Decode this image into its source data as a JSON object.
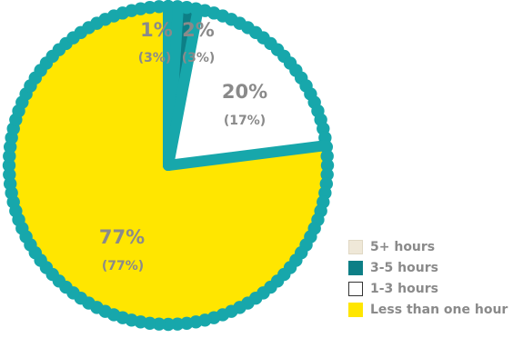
{
  "chart_data": {
    "type": "pie",
    "title": "",
    "slices": [
      {
        "label": "5+ hours",
        "value": 1,
        "secondary": "(3%)",
        "display": "1%",
        "color": "#efe8d8"
      },
      {
        "label": "3-5 hours",
        "value": 2,
        "secondary": "(3%)",
        "display": "2%",
        "color": "#0d7f86"
      },
      {
        "label": "1-3 hours",
        "value": 20,
        "secondary": "(17%)",
        "display": "20%",
        "color": "#ffffff"
      },
      {
        "label": "Less than one hour",
        "value": 77,
        "secondary": "(77%)",
        "display": "77%",
        "color": "#ffe600"
      }
    ],
    "legend_position": "bottom-right",
    "border_color": "#17a7ab"
  },
  "legend": {
    "items": [
      {
        "label": "5+ hours",
        "color": "#efe8d8"
      },
      {
        "label": "3-5 hours",
        "color": "#0d7f86"
      },
      {
        "label": "1-3 hours",
        "color": "#ffffff"
      },
      {
        "label": "Less than one hour",
        "color": "#ffe600"
      }
    ]
  }
}
